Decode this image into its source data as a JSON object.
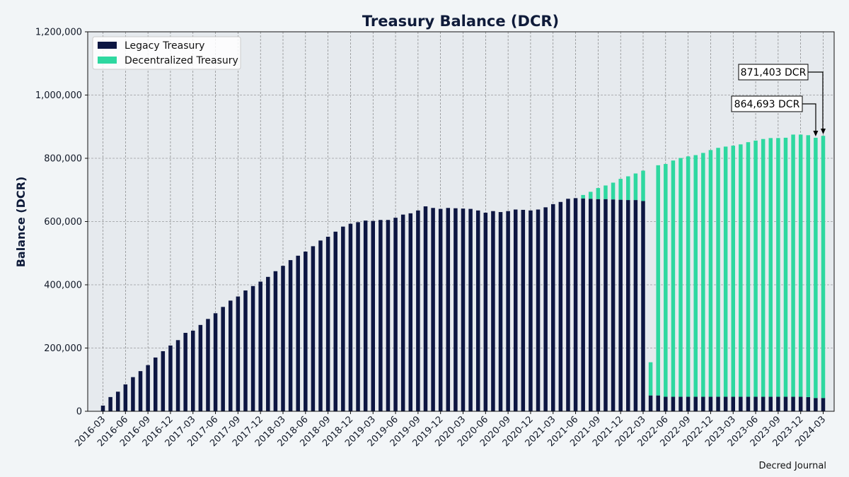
{
  "chart_data": {
    "type": "bar",
    "stacked": true,
    "title": "Treasury Balance (DCR)",
    "xlabel": "",
    "ylabel": "Balance (DCR)",
    "ylim": [
      0,
      1200000
    ],
    "yticks": [
      0,
      200000,
      400000,
      600000,
      800000,
      1000000,
      1200000
    ],
    "ytick_labels": [
      "0",
      "200,000",
      "400,000",
      "600,000",
      "800,000",
      "1,000,000",
      "1,200,000"
    ],
    "grid": true,
    "legend": "top-left",
    "credit": "Decred Journal",
    "categories": [
      "2016-03",
      "2016-04",
      "2016-05",
      "2016-06",
      "2016-07",
      "2016-08",
      "2016-09",
      "2016-10",
      "2016-11",
      "2016-12",
      "2017-01",
      "2017-02",
      "2017-03",
      "2017-04",
      "2017-05",
      "2017-06",
      "2017-07",
      "2017-08",
      "2017-09",
      "2017-10",
      "2017-11",
      "2017-12",
      "2018-01",
      "2018-02",
      "2018-03",
      "2018-04",
      "2018-05",
      "2018-06",
      "2018-07",
      "2018-08",
      "2018-09",
      "2018-10",
      "2018-11",
      "2018-12",
      "2019-01",
      "2019-02",
      "2019-03",
      "2019-04",
      "2019-05",
      "2019-06",
      "2019-07",
      "2019-08",
      "2019-09",
      "2019-10",
      "2019-11",
      "2019-12",
      "2020-01",
      "2020-02",
      "2020-03",
      "2020-04",
      "2020-05",
      "2020-06",
      "2020-07",
      "2020-08",
      "2020-09",
      "2020-10",
      "2020-11",
      "2020-12",
      "2021-01",
      "2021-02",
      "2021-03",
      "2021-04",
      "2021-05",
      "2021-06",
      "2021-07",
      "2021-08",
      "2021-09",
      "2021-10",
      "2021-11",
      "2021-12",
      "2022-01",
      "2022-02",
      "2022-03",
      "2022-04",
      "2022-05",
      "2022-06",
      "2022-07",
      "2022-08",
      "2022-09",
      "2022-10",
      "2022-11",
      "2022-12",
      "2023-01",
      "2023-02",
      "2023-03",
      "2023-04",
      "2023-05",
      "2023-06",
      "2023-07",
      "2023-08",
      "2023-09",
      "2023-10",
      "2023-11",
      "2023-12",
      "2024-01",
      "2024-02",
      "2024-03"
    ],
    "xtick_labels": [
      "2016-03",
      "2016-06",
      "2016-09",
      "2016-12",
      "2017-03",
      "2017-06",
      "2017-09",
      "2017-12",
      "2018-03",
      "2018-06",
      "2018-09",
      "2018-12",
      "2019-03",
      "2019-06",
      "2019-09",
      "2019-12",
      "2020-03",
      "2020-06",
      "2020-09",
      "2020-12",
      "2021-03",
      "2021-06",
      "2021-09",
      "2021-12",
      "2022-03",
      "2022-06",
      "2022-09",
      "2022-12",
      "2023-03",
      "2023-06",
      "2023-09",
      "2023-12",
      "2024-03"
    ],
    "series": [
      {
        "name": "Legacy Treasury",
        "color": "#0d1642",
        "values": [
          18000,
          45000,
          62000,
          85000,
          108000,
          127000,
          146000,
          170000,
          190000,
          208000,
          225000,
          248000,
          255000,
          273000,
          292000,
          310000,
          330000,
          350000,
          363000,
          382000,
          396000,
          410000,
          425000,
          443000,
          460000,
          478000,
          492000,
          505000,
          522000,
          540000,
          552000,
          568000,
          584000,
          593000,
          598000,
          603000,
          602000,
          605000,
          605000,
          612000,
          622000,
          626000,
          635000,
          648000,
          643000,
          640000,
          643000,
          642000,
          641000,
          640000,
          635000,
          628000,
          633000,
          630000,
          633000,
          638000,
          637000,
          635000,
          638000,
          645000,
          655000,
          662000,
          672000,
          674000,
          673000,
          672000,
          671000,
          671000,
          670000,
          669000,
          668000,
          668000,
          665000,
          50000,
          50000,
          46000,
          46000,
          46000,
          46000,
          46000,
          46000,
          46000,
          46000,
          46000,
          46000,
          46000,
          46000,
          46000,
          46000,
          46000,
          46000,
          46000,
          46000,
          46000,
          45000,
          42000,
          42000
        ]
      },
      {
        "name": "Decentralized Treasury",
        "color": "#2ed8a0",
        "values": [
          0,
          0,
          0,
          0,
          0,
          0,
          0,
          0,
          0,
          0,
          0,
          0,
          0,
          0,
          0,
          0,
          0,
          0,
          0,
          0,
          0,
          0,
          0,
          0,
          0,
          0,
          0,
          0,
          0,
          0,
          0,
          0,
          0,
          0,
          0,
          0,
          0,
          0,
          0,
          0,
          0,
          0,
          0,
          0,
          0,
          0,
          0,
          0,
          0,
          0,
          0,
          0,
          0,
          0,
          0,
          0,
          0,
          0,
          0,
          0,
          0,
          0,
          0,
          0,
          11000,
          22000,
          35000,
          43000,
          53000,
          66000,
          75000,
          84000,
          96000,
          105000,
          728000,
          736000,
          747000,
          755000,
          760000,
          764000,
          771000,
          780000,
          787000,
          791000,
          794000,
          798000,
          805000,
          810000,
          815000,
          818000,
          818000,
          819000,
          829000,
          829000,
          828000,
          823000,
          829000
        ]
      }
    ],
    "annotations": [
      {
        "text": "871,403 DCR",
        "x": "2024-03",
        "y": 871403
      },
      {
        "text": "864,693 DCR",
        "x": "2024-02",
        "y": 864693
      }
    ]
  }
}
